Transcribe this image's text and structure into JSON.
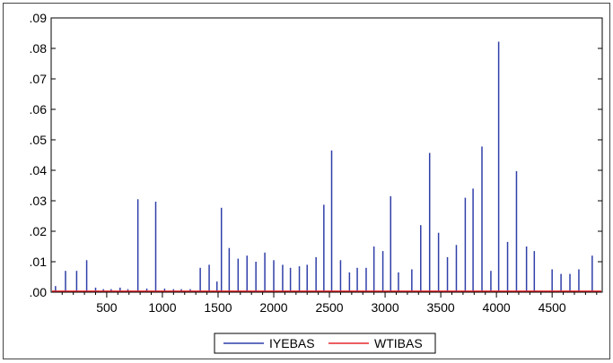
{
  "chart_data": {
    "type": "line",
    "title": "",
    "xlabel": "",
    "ylabel": "",
    "xlim": [
      1,
      4950
    ],
    "ylim": [
      0,
      0.09
    ],
    "x_ticks": [
      500,
      1000,
      1500,
      2000,
      2500,
      3000,
      3500,
      4000,
      4500
    ],
    "x_tick_labels": [
      "500",
      "1000",
      "1500",
      "2000",
      "2500",
      "3000",
      "3500",
      "4000",
      "4500"
    ],
    "y_ticks": [
      0,
      0.01,
      0.02,
      0.03,
      0.04,
      0.05,
      0.06,
      0.07,
      0.08,
      0.09
    ],
    "y_tick_labels": [
      ".00",
      ".01",
      ".02",
      ".03",
      ".04",
      ".05",
      ".06",
      ".07",
      ".08",
      ".09"
    ],
    "grid": false,
    "legend_position": "bottom",
    "series": [
      {
        "name": "IYEBAS",
        "color": "#2f3fa8",
        "spikes": [
          [
            40,
            0.002
          ],
          [
            130,
            0.007
          ],
          [
            230,
            0.007
          ],
          [
            320,
            0.0105
          ],
          [
            400,
            0.0015
          ],
          [
            470,
            0.001
          ],
          [
            540,
            0.001
          ],
          [
            620,
            0.0015
          ],
          [
            690,
            0.001
          ],
          [
            780,
            0.0305
          ],
          [
            860,
            0.0012
          ],
          [
            940,
            0.0297
          ],
          [
            1020,
            0.0012
          ],
          [
            1100,
            0.001
          ],
          [
            1170,
            0.001
          ],
          [
            1250,
            0.001
          ],
          [
            1340,
            0.008
          ],
          [
            1420,
            0.009
          ],
          [
            1490,
            0.0035
          ],
          [
            1530,
            0.0277
          ],
          [
            1600,
            0.0145
          ],
          [
            1680,
            0.011
          ],
          [
            1760,
            0.012
          ],
          [
            1840,
            0.01
          ],
          [
            1920,
            0.013
          ],
          [
            2000,
            0.0105
          ],
          [
            2080,
            0.009
          ],
          [
            2150,
            0.008
          ],
          [
            2230,
            0.0085
          ],
          [
            2300,
            0.009
          ],
          [
            2380,
            0.0115
          ],
          [
            2450,
            0.0287
          ],
          [
            2520,
            0.0465
          ],
          [
            2600,
            0.0105
          ],
          [
            2680,
            0.0065
          ],
          [
            2750,
            0.008
          ],
          [
            2830,
            0.008
          ],
          [
            2900,
            0.015
          ],
          [
            2980,
            0.0135
          ],
          [
            3050,
            0.0315
          ],
          [
            3120,
            0.0065
          ],
          [
            3240,
            0.0075
          ],
          [
            3320,
            0.022
          ],
          [
            3400,
            0.0457
          ],
          [
            3480,
            0.0195
          ],
          [
            3560,
            0.0115
          ],
          [
            3640,
            0.0155
          ],
          [
            3720,
            0.031
          ],
          [
            3790,
            0.034
          ],
          [
            3870,
            0.0478
          ],
          [
            3950,
            0.007
          ],
          [
            4020,
            0.0822
          ],
          [
            4100,
            0.0165
          ],
          [
            4180,
            0.0397
          ],
          [
            4270,
            0.015
          ],
          [
            4340,
            0.0135
          ],
          [
            4500,
            0.0075
          ],
          [
            4580,
            0.006
          ],
          [
            4660,
            0.006
          ],
          [
            4740,
            0.0075
          ],
          [
            4860,
            0.012
          ]
        ]
      },
      {
        "name": "WTIBAS",
        "color": "#e8282d",
        "level": 0.0003
      }
    ]
  }
}
